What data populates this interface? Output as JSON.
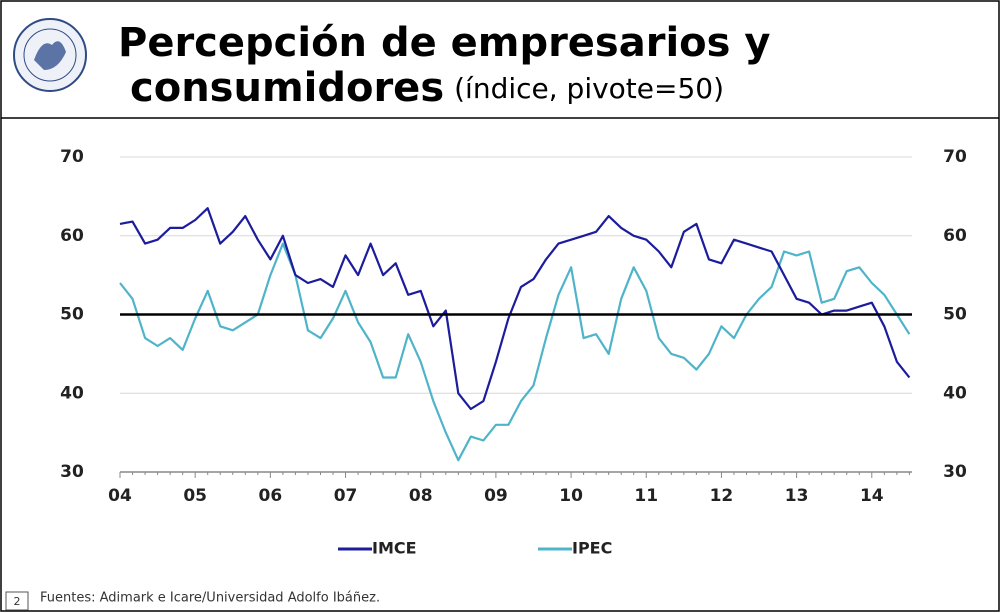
{
  "chart_data": {
    "type": "line",
    "title_lines": [
      "Percepción de empresarios y",
      "consumidores"
    ],
    "subtitle": "(índice, pivote=50)",
    "categories": [
      "04",
      null,
      null,
      null,
      null,
      null,
      "05",
      null,
      null,
      null,
      null,
      null,
      "06",
      null,
      null,
      null,
      null,
      null,
      "07",
      null,
      null,
      null,
      null,
      null,
      "08",
      null,
      null,
      null,
      null,
      null,
      "09",
      null,
      null,
      null,
      null,
      null,
      "10",
      null,
      null,
      null,
      null,
      null,
      "11",
      null,
      null,
      null,
      null,
      null,
      "12",
      null,
      null,
      null,
      null,
      null,
      "13",
      null,
      null,
      null,
      null,
      null,
      "14",
      null,
      null,
      null
    ],
    "series": [
      {
        "name": "IMCE",
        "color": "#1c1c9c",
        "values": [
          61.5,
          61.8,
          59,
          59.5,
          61,
          61,
          62,
          63.5,
          59,
          60.5,
          62.5,
          59.5,
          57,
          60,
          55,
          54,
          54.5,
          53.5,
          57.5,
          55,
          59,
          55,
          56.5,
          52.5,
          53,
          48.5,
          50.5,
          40,
          38,
          39,
          44,
          49.5,
          53.5,
          54.5,
          57,
          59,
          59.5,
          60,
          60.5,
          62.5,
          61,
          60,
          59.5,
          58,
          56,
          60.5,
          61.5,
          57,
          56.5,
          59.5,
          59,
          58.5,
          58,
          55,
          52,
          51.5,
          50,
          50.5,
          50.5,
          51,
          51.5,
          48.5,
          44,
          42
        ]
      },
      {
        "name": "IPEC",
        "color": "#4fb4c9",
        "values": [
          54,
          52,
          47,
          46,
          47,
          45.5,
          49.5,
          53,
          48.5,
          48,
          49,
          50,
          55,
          59,
          55,
          48,
          47,
          49.5,
          53,
          49,
          46.5,
          42,
          42,
          47.5,
          44,
          39,
          35,
          31.5,
          34.5,
          34,
          36,
          36,
          39,
          41,
          47,
          52.5,
          56,
          47,
          47.5,
          45,
          52,
          56,
          53,
          47,
          45,
          44.5,
          43,
          45,
          48.5,
          47,
          50,
          52,
          53.5,
          58,
          57.5,
          58,
          51.5,
          52,
          55.5,
          56,
          54,
          52.5,
          50,
          47.5
        ]
      }
    ],
    "ylim": [
      30,
      70
    ],
    "yticks": [
      30,
      40,
      50,
      60,
      70
    ],
    "grid": true,
    "reference_line": 50,
    "legend": "bottom",
    "source": "Fuentes: Adimark e Icare/Universidad Adolfo Ibáñez.",
    "page_number": "2"
  }
}
